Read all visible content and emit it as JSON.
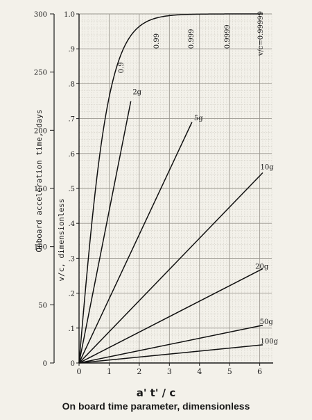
{
  "chart_data": {
    "type": "line",
    "x_axis": {
      "title": "a' t' / c",
      "subtitle": "On board time parameter, dimensionless",
      "range": [
        0,
        6.4
      ],
      "ticks": [
        "0",
        "1",
        "2",
        "3",
        "4",
        "5",
        "6"
      ]
    },
    "y_axis_right": {
      "title": "v/c, dimensionless",
      "range": [
        0,
        1.0
      ],
      "ticks": [
        "0",
        ".1",
        ".2",
        ".3",
        ".4",
        ".5",
        ".6",
        ".7",
        ".8",
        ".9",
        "1.0"
      ]
    },
    "y_axis_left": {
      "title": "Onboard acceleration time, days",
      "range": [
        0,
        300
      ],
      "ticks": [
        "0",
        "50",
        "100",
        "150",
        "200",
        "250",
        "300"
      ]
    },
    "velocity_labels": [
      "0.9",
      "0.99",
      "0.999",
      "0.9999",
      "v/c=0.99999"
    ],
    "velocity_label_x": [
      1.47,
      2.65,
      3.8,
      5.0,
      6.1
    ],
    "grid": true,
    "series": [
      {
        "name": "v/c",
        "function": "tanh",
        "x": [
          0,
          0.25,
          0.5,
          0.75,
          1.0,
          1.25,
          1.5,
          1.75,
          2.0,
          2.5,
          3.0,
          3.5,
          4.0,
          6.1
        ],
        "values": [
          0,
          0.245,
          0.462,
          0.635,
          0.762,
          0.848,
          0.905,
          0.941,
          0.964,
          0.987,
          0.995,
          0.998,
          0.999,
          1.0
        ]
      },
      {
        "name": "2g",
        "label": "2g",
        "x": [
          0,
          1.72
        ],
        "values": [
          0,
          0.75
        ],
        "label_at": [
          1.78,
          0.77
        ]
      },
      {
        "name": "5g",
        "label": "5g",
        "x": [
          0,
          3.75
        ],
        "values": [
          0,
          0.69
        ],
        "label_at": [
          3.82,
          0.695
        ]
      },
      {
        "name": "10g",
        "label": "10g",
        "x": [
          0,
          6.1
        ],
        "values": [
          0,
          0.545
        ],
        "label_at": [
          6.02,
          0.555
        ]
      },
      {
        "name": "20g",
        "label": "20g",
        "x": [
          0,
          6.1
        ],
        "values": [
          0,
          0.27
        ],
        "label_at": [
          5.85,
          0.27
        ]
      },
      {
        "name": "50g",
        "label": "50g",
        "x": [
          0,
          6.1
        ],
        "values": [
          0,
          0.108
        ],
        "label_at": [
          6.0,
          0.112
        ]
      },
      {
        "name": "100g",
        "label": "100g",
        "x": [
          0,
          6.1
        ],
        "values": [
          0,
          0.052
        ],
        "label_at": [
          6.02,
          0.056
        ]
      }
    ]
  }
}
